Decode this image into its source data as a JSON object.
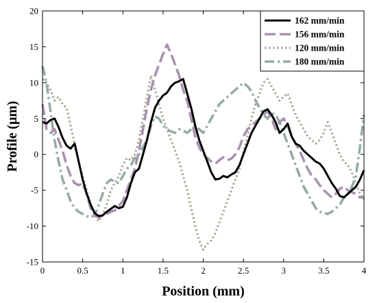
{
  "chart_data": {
    "type": "line",
    "title": "",
    "xlabel": "Position (mm)",
    "ylabel": "Profile (μm)",
    "xlim": [
      0,
      4
    ],
    "ylim": [
      -15,
      20
    ],
    "xticks": [
      "0",
      "0.5",
      "1",
      "1.5",
      "2",
      "2.5",
      "3",
      "3.5",
      "4"
    ],
    "yticks": [
      "-15",
      "-10",
      "-5",
      "0",
      "5",
      "10",
      "15",
      "20"
    ],
    "grid": false,
    "legend": "top-right",
    "series": [
      {
        "name": "162 mm/min",
        "color": "#000000",
        "style": "solid",
        "x": [
          0,
          0.05,
          0.1,
          0.15,
          0.2,
          0.25,
          0.3,
          0.35,
          0.4,
          0.45,
          0.5,
          0.55,
          0.6,
          0.65,
          0.7,
          0.75,
          0.8,
          0.85,
          0.9,
          0.95,
          1.0,
          1.05,
          1.1,
          1.15,
          1.2,
          1.25,
          1.3,
          1.35,
          1.4,
          1.45,
          1.5,
          1.55,
          1.6,
          1.65,
          1.7,
          1.75,
          1.8,
          1.85,
          1.9,
          1.95,
          2.0,
          2.05,
          2.1,
          2.15,
          2.2,
          2.25,
          2.3,
          2.35,
          2.4,
          2.45,
          2.5,
          2.55,
          2.6,
          2.65,
          2.7,
          2.75,
          2.8,
          2.85,
          2.9,
          2.95,
          3.0,
          3.05,
          3.1,
          3.15,
          3.2,
          3.25,
          3.3,
          3.35,
          3.4,
          3.45,
          3.5,
          3.55,
          3.6,
          3.65,
          3.7,
          3.75,
          3.8,
          3.85,
          3.9,
          3.95,
          4.0
        ],
        "y": [
          4.5,
          4.3,
          4.8,
          5.0,
          3.8,
          2.3,
          1.2,
          0.8,
          1.5,
          -1.0,
          -3.5,
          -5.5,
          -7.0,
          -8.2,
          -8.6,
          -8.5,
          -8.0,
          -7.6,
          -7.2,
          -7.5,
          -7.3,
          -6.0,
          -4.0,
          -2.5,
          -2.0,
          0.0,
          2.0,
          4.5,
          6.5,
          7.5,
          8.2,
          8.6,
          9.5,
          10.0,
          10.2,
          10.5,
          8.5,
          6.5,
          4.0,
          2.0,
          0.5,
          -1.0,
          -2.5,
          -3.5,
          -3.4,
          -3.0,
          -3.2,
          -2.8,
          -2.5,
          -1.5,
          0.0,
          1.5,
          3.0,
          4.0,
          5.0,
          6.0,
          6.3,
          5.5,
          4.5,
          3.0,
          3.5,
          4.3,
          2.5,
          1.5,
          1.2,
          0.5,
          0.0,
          -0.5,
          -1.0,
          -1.3,
          -2.0,
          -3.0,
          -4.0,
          -4.8,
          -5.8,
          -6.0,
          -5.5,
          -5.0,
          -4.5,
          -3.5,
          -2.2
        ]
      },
      {
        "name": "156 mm/min",
        "color": "#a793ad",
        "style": "dash",
        "x": [
          0,
          0.05,
          0.1,
          0.15,
          0.2,
          0.25,
          0.3,
          0.35,
          0.4,
          0.45,
          0.5,
          0.55,
          0.6,
          0.65,
          0.7,
          0.75,
          0.8,
          0.85,
          0.9,
          0.95,
          1.0,
          1.05,
          1.1,
          1.15,
          1.2,
          1.25,
          1.3,
          1.35,
          1.4,
          1.45,
          1.5,
          1.55,
          1.6,
          1.65,
          1.7,
          1.75,
          1.8,
          1.85,
          1.9,
          1.95,
          2.0,
          2.05,
          2.1,
          2.15,
          2.2,
          2.25,
          2.3,
          2.35,
          2.4,
          2.45,
          2.5,
          2.55,
          2.6,
          2.65,
          2.7,
          2.75,
          2.8,
          2.85,
          2.9,
          2.95,
          3.0,
          3.05,
          3.1,
          3.15,
          3.2,
          3.25,
          3.3,
          3.35,
          3.4,
          3.45,
          3.5,
          3.55,
          3.6,
          3.65,
          3.7,
          3.75,
          3.8,
          3.85,
          3.9,
          3.95,
          4.0
        ],
        "y": [
          7.0,
          3.5,
          3.0,
          3.5,
          2.0,
          0.5,
          -1.5,
          -3.0,
          -4.0,
          -4.3,
          -4.0,
          -5.5,
          -7.5,
          -8.5,
          -8.8,
          -8.5,
          -8.3,
          -8.0,
          -7.8,
          -7.2,
          -6.5,
          -5.0,
          -3.5,
          -2.0,
          0.5,
          3.5,
          6.5,
          9.0,
          11.0,
          12.5,
          14.0,
          15.3,
          14.0,
          12.5,
          11.0,
          9.0,
          7.5,
          5.0,
          2.5,
          1.0,
          0.0,
          -0.5,
          -1.0,
          -1.3,
          -0.8,
          -0.4,
          -0.8,
          -0.6,
          0.0,
          1.0,
          2.5,
          3.5,
          4.0,
          4.5,
          5.0,
          5.5,
          6.0,
          5.0,
          3.5,
          4.5,
          5.0,
          4.0,
          2.5,
          1.5,
          0.5,
          -0.8,
          -2.0,
          -3.0,
          -3.5,
          -4.3,
          -5.0,
          -5.5,
          -6.0,
          -5.5,
          -4.8,
          -4.5,
          -5.0,
          -5.3,
          -5.5,
          -6.0,
          -6.0
        ]
      },
      {
        "name": "120 mm/min",
        "color": "#aaaa96",
        "style": "dot",
        "x": [
          0,
          0.05,
          0.1,
          0.15,
          0.2,
          0.25,
          0.3,
          0.35,
          0.4,
          0.45,
          0.5,
          0.55,
          0.6,
          0.65,
          0.7,
          0.75,
          0.8,
          0.85,
          0.9,
          0.95,
          1.0,
          1.05,
          1.1,
          1.15,
          1.2,
          1.25,
          1.3,
          1.35,
          1.4,
          1.45,
          1.5,
          1.55,
          1.6,
          1.65,
          1.7,
          1.75,
          1.8,
          1.85,
          1.9,
          1.95,
          2.0,
          2.05,
          2.1,
          2.15,
          2.2,
          2.25,
          2.3,
          2.35,
          2.4,
          2.45,
          2.5,
          2.55,
          2.6,
          2.65,
          2.7,
          2.75,
          2.8,
          2.85,
          2.9,
          2.95,
          3.0,
          3.05,
          3.1,
          3.15,
          3.2,
          3.25,
          3.3,
          3.35,
          3.4,
          3.45,
          3.5,
          3.55,
          3.6,
          3.65,
          3.7,
          3.75,
          3.8,
          3.85,
          3.9,
          3.95,
          4.0
        ],
        "y": [
          10.5,
          10.0,
          9.0,
          7.5,
          8.0,
          7.0,
          6.5,
          4.0,
          1.5,
          -1.0,
          -3.0,
          -5.0,
          -7.0,
          -8.5,
          -9.3,
          -8.5,
          -7.0,
          -5.0,
          -4.0,
          -3.0,
          -1.5,
          -0.5,
          -0.8,
          0.0,
          2.0,
          5.0,
          8.0,
          11.0,
          9.0,
          7.0,
          5.0,
          3.5,
          2.0,
          0.5,
          -1.0,
          -3.0,
          -5.0,
          -7.5,
          -10.0,
          -12.0,
          -13.3,
          -12.5,
          -12.0,
          -11.0,
          -9.5,
          -8.0,
          -6.5,
          -5.0,
          -3.5,
          -2.0,
          0.5,
          2.5,
          5.0,
          7.0,
          8.5,
          10.0,
          10.5,
          9.5,
          8.5,
          7.5,
          8.0,
          8.5,
          7.0,
          5.5,
          4.5,
          3.5,
          2.5,
          2.0,
          1.5,
          2.0,
          3.0,
          4.5,
          3.0,
          1.5,
          0.0,
          -1.0,
          -1.5,
          -2.5,
          -4.0,
          -5.5,
          -6.3
        ]
      },
      {
        "name": "180 mm/min",
        "color": "#94aba8",
        "style": "dashdot",
        "x": [
          0,
          0.05,
          0.1,
          0.15,
          0.2,
          0.25,
          0.3,
          0.35,
          0.4,
          0.45,
          0.5,
          0.55,
          0.6,
          0.65,
          0.7,
          0.75,
          0.8,
          0.85,
          0.9,
          0.95,
          1.0,
          1.05,
          1.1,
          1.15,
          1.2,
          1.25,
          1.3,
          1.35,
          1.4,
          1.45,
          1.5,
          1.55,
          1.6,
          1.65,
          1.7,
          1.75,
          1.8,
          1.85,
          1.9,
          1.95,
          2.0,
          2.05,
          2.1,
          2.15,
          2.2,
          2.25,
          2.3,
          2.35,
          2.4,
          2.45,
          2.5,
          2.55,
          2.6,
          2.65,
          2.7,
          2.75,
          2.8,
          2.85,
          2.9,
          2.95,
          3.0,
          3.05,
          3.1,
          3.15,
          3.2,
          3.25,
          3.3,
          3.35,
          3.4,
          3.45,
          3.5,
          3.55,
          3.6,
          3.65,
          3.7,
          3.75,
          3.8,
          3.85,
          3.9,
          3.95,
          4.0
        ],
        "y": [
          12.3,
          10.0,
          6.0,
          2.0,
          -1.0,
          -3.5,
          -5.0,
          -6.5,
          -7.5,
          -8.0,
          -8.3,
          -8.6,
          -8.8,
          -8.5,
          -7.0,
          -5.5,
          -4.0,
          -3.5,
          -3.8,
          -4.0,
          -3.0,
          -2.0,
          -1.5,
          -0.5,
          0.0,
          1.0,
          2.0,
          4.0,
          5.3,
          5.0,
          4.0,
          3.5,
          3.2,
          3.0,
          3.5,
          3.3,
          3.0,
          3.5,
          4.0,
          3.5,
          3.0,
          4.0,
          5.0,
          6.0,
          7.0,
          7.5,
          8.0,
          8.5,
          9.0,
          9.5,
          10.0,
          9.5,
          8.8,
          7.5,
          6.5,
          5.5,
          5.0,
          5.8,
          5.5,
          4.5,
          3.0,
          1.5,
          0.0,
          -1.5,
          -3.0,
          -4.5,
          -5.5,
          -6.5,
          -7.5,
          -8.0,
          -8.2,
          -8.3,
          -8.0,
          -7.5,
          -7.0,
          -6.0,
          -5.5,
          -4.5,
          -3.0,
          1.0,
          5.5
        ]
      }
    ]
  }
}
